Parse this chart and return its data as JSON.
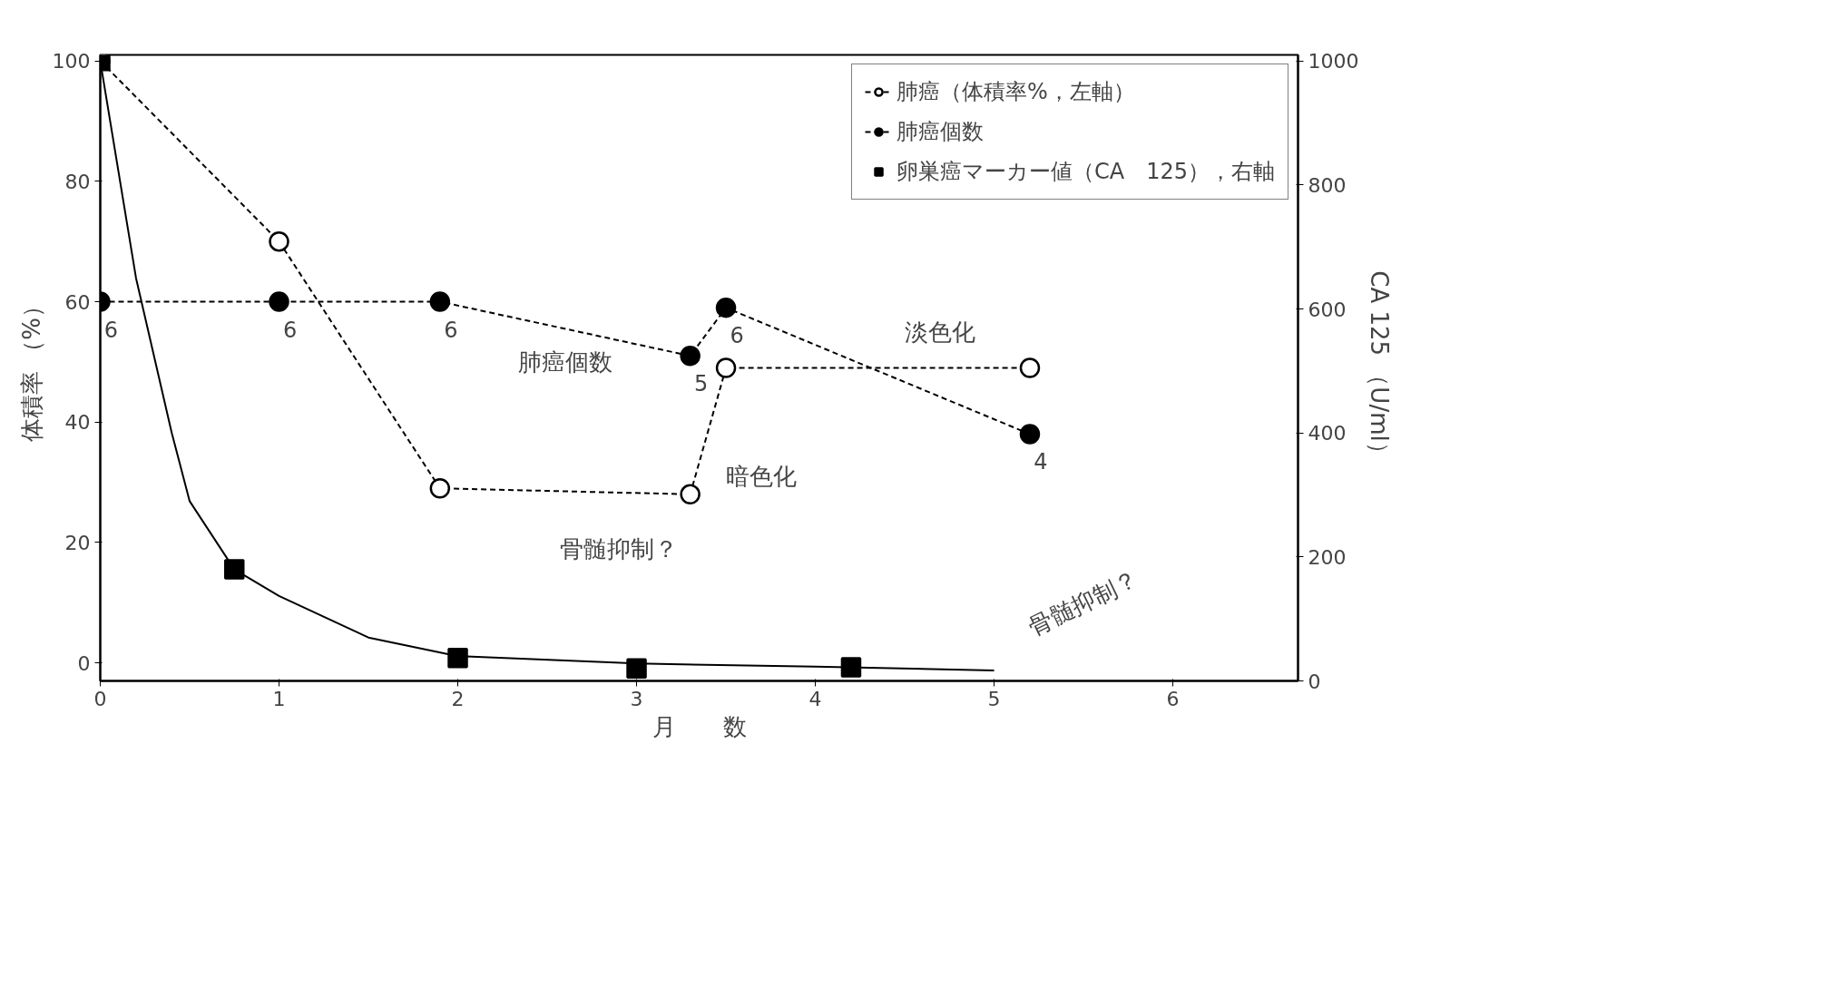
{
  "chart_data": {
    "type": "line",
    "xlabel": "月　　数",
    "ylabel": "体積率 （%）",
    "y2label": "CA 125 （U/ml）",
    "xlim": [
      0,
      6.7
    ],
    "xticks": [
      0,
      1,
      2,
      3,
      4,
      5,
      6
    ],
    "ylim": [
      -3,
      101
    ],
    "yticks": [
      0,
      20,
      40,
      60,
      80,
      100
    ],
    "y2lim": [
      0,
      1010
    ],
    "y2ticks": [
      0,
      200,
      400,
      600,
      800,
      1000
    ],
    "grid": false,
    "legend": "top right",
    "series": [
      {
        "name": "肺癌（体積率%，左軸）",
        "color": "#ffffff",
        "marker": "circle",
        "line_style": "dashed",
        "x": [
          0,
          1,
          1.9,
          3.3,
          3.5,
          5.2
        ],
        "values": [
          100,
          70,
          29,
          28,
          49,
          49
        ]
      },
      {
        "name": "肺癌個数",
        "color": "#000000",
        "marker": "circle",
        "line_style": "dashed",
        "x": [
          0,
          1,
          1.9,
          3.3,
          3.5,
          5.2
        ],
        "values": [
          60,
          60,
          60,
          51,
          59,
          38
        ]
      },
      {
        "name": "卵巣癌マーカー値（CA　125），右軸",
        "type": "scatter",
        "axis": "y2",
        "color": "#000000",
        "marker": "square",
        "x": [
          0,
          0.75,
          2,
          3,
          4.2
        ],
        "values": [
          1000,
          180,
          37,
          20,
          22
        ]
      },
      {
        "axis": "y2",
        "color": "#000000",
        "marker": "none",
        "line_style": "solid",
        "x": [
          0,
          0.2,
          0.4,
          0.5,
          0.75,
          1,
          1.5,
          2,
          3,
          4,
          5
        ],
        "values": [
          1000,
          650,
          400,
          290,
          180,
          137,
          70,
          40,
          28,
          23,
          17
        ]
      }
    ],
    "annotations": [
      "肺癌個数",
      "淡色化",
      "暗色化",
      "骨髄抑制？",
      "骨髄抑制？",
      {
        "text": "6",
        "x": 0,
        "y": 60
      },
      {
        "text": "6",
        "x": 1,
        "y": 60
      },
      {
        "text": "6",
        "x": 1.9,
        "y": 60
      },
      {
        "text": "5",
        "x": 3.3,
        "y": 51
      },
      {
        "text": "6",
        "x": 3.5,
        "y": 59
      },
      {
        "text": "4",
        "x": 5.2,
        "y": 38
      }
    ]
  }
}
